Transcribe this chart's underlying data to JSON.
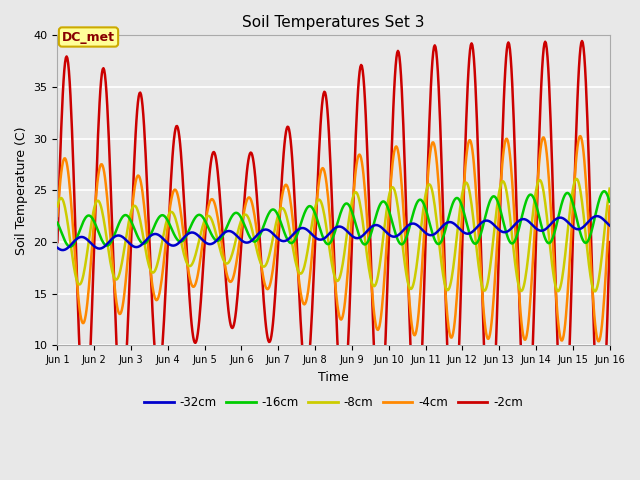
{
  "title": "Soil Temperatures Set 3",
  "xlabel": "Time",
  "ylabel": "Soil Temperature (C)",
  "ylim": [
    10,
    40
  ],
  "yticks": [
    10,
    15,
    20,
    25,
    30,
    35,
    40
  ],
  "background_color": "#e0e0e0",
  "plot_bg_color": "#e8e8e8",
  "annotation_text": "DC_met",
  "annotation_bg": "#ffff99",
  "annotation_border": "#ccaa00",
  "legend_labels": [
    "-32cm",
    "-16cm",
    "-8cm",
    "-4cm",
    "-2cm"
  ],
  "line_colors": [
    "#0000cc",
    "#00cc00",
    "#cccc00",
    "#ff8800",
    "#cc0000"
  ],
  "line_widths": [
    1.8,
    1.8,
    1.8,
    1.8,
    1.8
  ],
  "x_tick_labels": [
    "Jun 1",
    "Jun 2",
    "Jun 3",
    "Jun 4",
    "Jun 5",
    "Jun 6",
    "Jun 7",
    "Jun 8",
    "Jun 9",
    "Jun 10",
    "Jun 11",
    "Jun 12",
    "Jun 13",
    "Jun 14",
    "Jun 15",
    "Jun 16"
  ],
  "x_tick_positions": [
    0,
    24,
    48,
    72,
    96,
    120,
    144,
    168,
    192,
    216,
    240,
    264,
    288,
    312,
    336,
    360
  ],
  "num_points": 721,
  "t_start": 0,
  "t_end": 360
}
